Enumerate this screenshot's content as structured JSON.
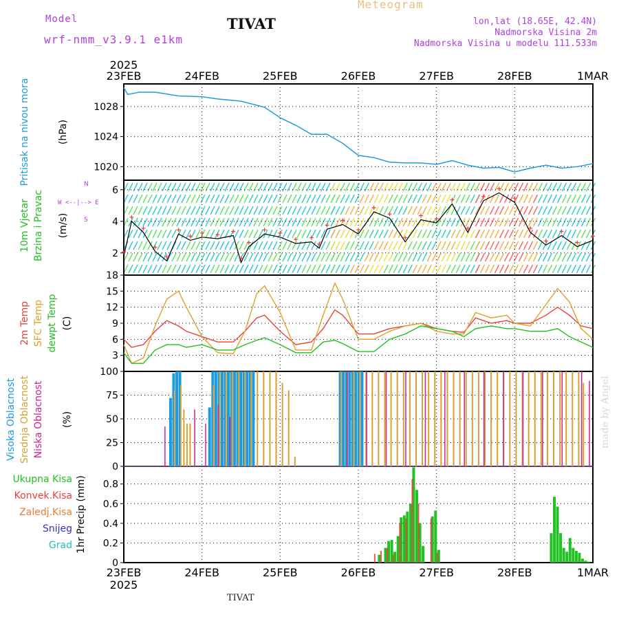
{
  "header": {
    "model_label": "Model",
    "model_name": "wrf-nmm_v3.9.1 e1km",
    "title": "TIVAT",
    "chart_type_label": "Meteogram",
    "lonlat": "lon,lat (18.65E, 42.4N)",
    "elevation": "Nadmorska Visina 2m",
    "model_elevation": "Nadmorska Visina u modelu 111.533m"
  },
  "footer": {
    "station": "TIVAT",
    "credit": "made by Angel"
  },
  "colors": {
    "pressure": "#1e9be0",
    "temp2m": "#e8403a",
    "sfc_temp": "#e0a02a",
    "dewpt": "#22c022",
    "high_cloud": "#1e9be0",
    "mid_cloud": "#d8a030",
    "low_cloud": "#d02090",
    "precip_total": "#22c022",
    "precip_conv": "#e8403a",
    "precip_frozen": "#e88030",
    "snow": "#3030d0",
    "graupel": "#20c0c0",
    "wind_label": "#22c022",
    "wind_marker": "#b040e0"
  },
  "chart_data": [
    {
      "type": "line",
      "panel": "pressure",
      "year_label": "2025",
      "x_labels": [
        "23FEB",
        "24FEB",
        "25FEB",
        "26FEB",
        "27FEB",
        "28FEB",
        "1MAR"
      ],
      "ylabel_main": "Pritisak na nivou mora",
      "ylabel_unit": "(hPa)",
      "ylim": [
        1018.2,
        1031
      ],
      "yticks": [
        1020,
        1024,
        1028
      ],
      "series": [
        {
          "name": "Pritisak na nivou mora",
          "x": [
            0,
            0.05,
            0.2,
            0.4,
            0.7,
            1.0,
            1.2,
            1.5,
            1.8,
            2.0,
            2.2,
            2.4,
            2.6,
            2.8,
            3.0,
            3.2,
            3.4,
            3.6,
            3.8,
            4.0,
            4.2,
            4.4,
            4.6,
            4.8,
            5.0,
            5.2,
            5.4,
            5.6,
            5.8,
            6.0
          ],
          "values": [
            1030.5,
            1029.6,
            1029.9,
            1029.9,
            1029.4,
            1029.3,
            1029.0,
            1028.7,
            1027.9,
            1026.5,
            1025.5,
            1024.3,
            1024.3,
            1023.1,
            1021.5,
            1021.2,
            1020.6,
            1020.5,
            1020.5,
            1020.3,
            1020.8,
            1020.2,
            1019.8,
            1019.9,
            1019.3,
            1019.8,
            1020.2,
            1019.8,
            1020.0,
            1020.4
          ]
        }
      ]
    },
    {
      "type": "line",
      "panel": "wind",
      "ylabel_main_1": "10m Vjetar",
      "ylabel_main_2": "Brzina i Pravac",
      "ylabel_unit": "(m/s)",
      "compass_text": "W <--|--> E",
      "compass_top": "N",
      "compass_bottom": "S",
      "ylim": [
        0.6,
        6.6
      ],
      "yticks": [
        2,
        4,
        6
      ],
      "series": [
        {
          "name": "Brzina",
          "x": [
            0,
            0.1,
            0.25,
            0.4,
            0.55,
            0.7,
            0.85,
            1.0,
            1.2,
            1.4,
            1.5,
            1.6,
            1.8,
            2.0,
            2.2,
            2.4,
            2.5,
            2.6,
            2.8,
            3.0,
            3.2,
            3.4,
            3.6,
            3.8,
            4.0,
            4.2,
            4.4,
            4.6,
            4.8,
            5.0,
            5.2,
            5.4,
            5.6,
            5.8,
            6.0
          ],
          "values": [
            1.8,
            4.0,
            3.3,
            2.1,
            1.5,
            3.2,
            2.8,
            3.0,
            2.9,
            3.1,
            1.4,
            2.4,
            3.2,
            3.0,
            2.6,
            2.7,
            2.3,
            3.5,
            3.8,
            3.2,
            4.6,
            4.2,
            2.7,
            4.1,
            3.9,
            5.1,
            3.3,
            5.3,
            5.8,
            5.2,
            3.3,
            2.5,
            3.1,
            2.4,
            2.8
          ]
        }
      ]
    },
    {
      "type": "line",
      "panel": "temperature",
      "ylabel_1": "2m Temp",
      "ylabel_2": "SFC Temp",
      "ylabel_3": "dewpt Temp",
      "ylabel_unit": "(C)",
      "ylim": [
        0,
        18
      ],
      "yticks": [
        3,
        6,
        9,
        12,
        15,
        18
      ],
      "x": [
        0,
        0.1,
        0.25,
        0.4,
        0.55,
        0.7,
        0.8,
        1.0,
        1.2,
        1.4,
        1.55,
        1.7,
        1.8,
        2.0,
        2.2,
        2.4,
        2.55,
        2.7,
        2.8,
        3.0,
        3.2,
        3.4,
        3.6,
        3.8,
        4.0,
        4.2,
        4.35,
        4.5,
        4.7,
        4.9,
        5.0,
        5.2,
        5.4,
        5.55,
        5.7,
        5.85,
        6.0
      ],
      "series": [
        {
          "name": "2m Temp",
          "values": [
            6.0,
            4.5,
            5.0,
            7.5,
            9.5,
            8.5,
            7.5,
            6.5,
            5.5,
            5.5,
            7.5,
            10.0,
            10.5,
            7.5,
            5.0,
            5.5,
            8.0,
            11.5,
            10.5,
            7.0,
            7.0,
            8.0,
            8.5,
            9.0,
            8.0,
            7.5,
            7.3,
            10.0,
            9.0,
            9.5,
            9.0,
            9.0,
            10.5,
            12.0,
            10.5,
            8.5,
            8.0
          ]
        },
        {
          "name": "SFC Temp",
          "values": [
            5.0,
            1.5,
            2.5,
            8.5,
            13.5,
            15.0,
            12.0,
            6.5,
            3.5,
            3.3,
            7.5,
            14.5,
            16.0,
            11.0,
            4.0,
            4.0,
            10.5,
            16.5,
            13.5,
            6.0,
            6.0,
            7.5,
            8.5,
            9.0,
            7.5,
            7.0,
            7.0,
            11.0,
            10.0,
            10.5,
            9.0,
            8.5,
            12.5,
            15.5,
            13.0,
            8.0,
            6.0
          ]
        },
        {
          "name": "dewpt Temp",
          "values": [
            3.5,
            1.5,
            1.5,
            4.0,
            5.0,
            5.0,
            4.5,
            5.0,
            4.0,
            4.0,
            5.0,
            5.8,
            6.3,
            5.0,
            3.5,
            3.5,
            5.5,
            5.8,
            5.2,
            3.7,
            3.7,
            6.0,
            7.0,
            8.5,
            8.0,
            7.5,
            6.5,
            8.0,
            8.5,
            8.0,
            8.0,
            7.5,
            7.5,
            8.0,
            6.5,
            5.5,
            4.5
          ]
        }
      ]
    },
    {
      "type": "bar",
      "panel": "cloud",
      "ylabel_1": "Visoka Oblacnost",
      "ylabel_2": "Srednja Oblacnost",
      "ylabel_3": "Niska Oblacnost",
      "ylabel_unit": "(%)",
      "ylim": [
        0,
        100
      ],
      "yticks": [
        0,
        25,
        50,
        75,
        100
      ],
      "series": [
        {
          "name": "Visoka Oblacnost",
          "x": [
            0.58,
            0.62,
            0.66,
            0.7,
            1.08,
            1.12,
            1.16,
            1.2,
            1.24,
            1.28,
            1.32,
            1.36,
            1.4,
            1.44,
            1.48,
            1.52,
            1.56,
            1.6,
            1.64,
            2.75,
            2.79,
            2.83,
            2.87,
            2.91,
            2.95,
            2.99,
            3.03
          ],
          "values": [
            72,
            98,
            100,
            100,
            62,
            100,
            100,
            100,
            100,
            100,
            100,
            100,
            100,
            100,
            100,
            100,
            100,
            100,
            100,
            100,
            100,
            100,
            100,
            100,
            100,
            100,
            100
          ]
        },
        {
          "name": "Srednja Oblacnost",
          "x": [
            0.64,
            0.72,
            0.76,
            0.8,
            0.84,
            1.14,
            1.22,
            1.3,
            1.38,
            1.46,
            1.54,
            1.62,
            1.7,
            1.78,
            1.86,
            1.94,
            2.02,
            2.1,
            2.18,
            2.77,
            2.85,
            2.93,
            3.01,
            3.09,
            3.17,
            3.25,
            3.33,
            3.41,
            3.49,
            3.57,
            3.65,
            3.73,
            3.81,
            3.89,
            3.97,
            4.05,
            4.13,
            4.21,
            4.29,
            4.37,
            4.45,
            4.53,
            4.61,
            4.69,
            4.77,
            4.85,
            4.93,
            5.01,
            5.09,
            5.17,
            5.25,
            5.33,
            5.41,
            5.49,
            5.57,
            5.65,
            5.73,
            5.81,
            5.87
          ],
          "values": [
            80,
            85,
            60,
            45,
            45,
            85,
            100,
            100,
            100,
            100,
            100,
            100,
            100,
            100,
            100,
            100,
            88,
            80,
            10,
            100,
            100,
            100,
            100,
            100,
            100,
            100,
            100,
            100,
            100,
            100,
            100,
            100,
            100,
            100,
            100,
            100,
            100,
            100,
            100,
            100,
            100,
            100,
            100,
            100,
            100,
            100,
            100,
            100,
            100,
            100,
            100,
            100,
            100,
            100,
            100,
            100,
            100,
            100,
            88
          ]
        },
        {
          "name": "Niska Oblacnost",
          "x": [
            0.52,
            0.9,
            1.04,
            1.2,
            1.35,
            2.85,
            3.1,
            3.35,
            3.6,
            3.85,
            4.1,
            4.35,
            4.6,
            4.85,
            5.1,
            5.35,
            5.6,
            5.85,
            5.95
          ],
          "values": [
            42,
            60,
            45,
            65,
            52,
            100,
            100,
            100,
            100,
            100,
            100,
            100,
            100,
            100,
            100,
            100,
            100,
            100,
            90
          ]
        }
      ]
    },
    {
      "type": "bar",
      "panel": "precip",
      "legend": [
        "Ukupna Kisa",
        "Konvek.Kisa",
        "Zaledj.Kisa",
        "Snijeg",
        "Grad"
      ],
      "ylabel_1": "1hr Precip",
      "ylabel_unit": "(mm)",
      "ylim": [
        0,
        0.98
      ],
      "yticks": [
        0,
        0.2,
        0.4,
        0.6,
        0.8
      ],
      "series": [
        {
          "name": "Ukupna Kisa",
          "x": [
            3.25,
            3.33,
            3.37,
            3.41,
            3.45,
            3.49,
            3.53,
            3.57,
            3.61,
            3.65,
            3.69,
            3.73,
            3.77,
            3.81,
            3.93,
            3.97,
            4.01,
            5.45,
            5.49,
            5.53,
            5.57,
            5.61,
            5.65,
            5.69,
            5.73,
            5.77,
            5.81,
            5.85,
            5.89,
            5.93
          ],
          "values": [
            0.08,
            0.15,
            0.22,
            0.23,
            0.11,
            0.27,
            0.46,
            0.48,
            0.52,
            0.6,
            0.97,
            0.74,
            0.4,
            0.17,
            0.47,
            0.53,
            0.13,
            0.3,
            0.67,
            0.57,
            0.3,
            0.15,
            0.11,
            0.25,
            0.15,
            0.12,
            0.1,
            0.04,
            0.02,
            0.01
          ]
        },
        {
          "name": "Konvek.Kisa",
          "x": [
            3.21,
            3.29,
            3.37,
            3.45,
            3.53,
            3.61,
            3.69,
            3.77,
            3.93,
            4.01
          ],
          "values": [
            0.09,
            0.12,
            0.15,
            0.08,
            0.4,
            0.45,
            0.85,
            0.6,
            0.45,
            0.1
          ]
        },
        {
          "name": "Zaledj.Kisa",
          "x": [],
          "values": []
        },
        {
          "name": "Snijeg",
          "x": [],
          "values": []
        },
        {
          "name": "Grad",
          "x": [],
          "values": []
        }
      ]
    }
  ]
}
